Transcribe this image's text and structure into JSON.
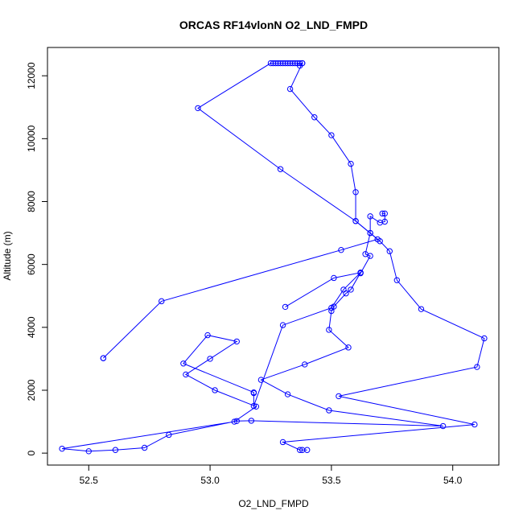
{
  "chart_data": {
    "type": "line",
    "title": "ORCAS RF14vlonN O2_LND_FMPD",
    "xlabel": "O2_LND_FMPD",
    "ylabel": "Altitude (m)",
    "xlim": [
      52.33,
      54.19
    ],
    "ylim": [
      -380,
      12900
    ],
    "x_ticks": [
      52.5,
      53.0,
      53.5,
      54.0
    ],
    "x_tick_labels": [
      "52.5",
      "53.0",
      "53.5",
      "54.0"
    ],
    "y_ticks": [
      0,
      2000,
      4000,
      6000,
      8000,
      10000,
      12000
    ],
    "y_tick_labels": [
      "0",
      "2000",
      "4000",
      "6000",
      "8000",
      "10000",
      "12000"
    ],
    "grid": false,
    "color": "#0000ff",
    "marker": "open-circle",
    "series": [
      {
        "points": [
          [
            53.37,
            12320
          ],
          [
            53.38,
            12400
          ],
          [
            53.37,
            12400
          ],
          [
            53.36,
            12400
          ],
          [
            53.35,
            12400
          ],
          [
            53.34,
            12400
          ],
          [
            53.33,
            12400
          ],
          [
            53.32,
            12400
          ],
          [
            53.31,
            12400
          ],
          [
            53.3,
            12400
          ],
          [
            53.29,
            12400
          ],
          [
            53.28,
            12400
          ],
          [
            53.27,
            12400
          ],
          [
            53.26,
            12400
          ],
          [
            53.25,
            12400
          ],
          [
            52.95,
            10970
          ],
          [
            53.29,
            9030
          ],
          [
            53.6,
            7380
          ],
          [
            53.69,
            6800
          ],
          [
            53.54,
            6460
          ],
          [
            52.8,
            4830
          ],
          [
            52.56,
            3020
          ],
          [
            52.56,
            3020
          ]
        ]
      },
      {
        "points": [
          [
            53.38,
            12400
          ],
          [
            53.33,
            11580
          ],
          [
            53.43,
            10680
          ],
          [
            53.5,
            10110
          ],
          [
            53.58,
            9200
          ],
          [
            53.6,
            8300
          ],
          [
            53.6,
            7380
          ],
          [
            53.66,
            7000
          ],
          [
            53.7,
            6740
          ],
          [
            53.74,
            6420
          ],
          [
            53.77,
            5500
          ],
          [
            53.87,
            4580
          ],
          [
            54.13,
            3650
          ],
          [
            54.1,
            2740
          ],
          [
            53.53,
            1810
          ],
          [
            54.09,
            910
          ],
          [
            53.3,
            350
          ],
          [
            53.37,
            100
          ],
          [
            53.38,
            100
          ],
          [
            53.4,
            100
          ]
        ]
      },
      {
        "points": [
          [
            53.71,
            7620
          ],
          [
            53.72,
            7620
          ],
          [
            53.72,
            7360
          ],
          [
            53.7,
            7330
          ],
          [
            53.66,
            7530
          ],
          [
            53.66,
            7000
          ],
          [
            53.64,
            6330
          ],
          [
            53.66,
            6270
          ],
          [
            53.62,
            5720
          ],
          [
            53.62,
            5740
          ],
          [
            53.58,
            5200
          ],
          [
            53.56,
            5080
          ],
          [
            53.51,
            4660
          ],
          [
            53.5,
            4520
          ],
          [
            53.49,
            3920
          ],
          [
            53.57,
            3360
          ],
          [
            53.39,
            2820
          ],
          [
            53.21,
            2330
          ],
          [
            53.32,
            1870
          ],
          [
            53.49,
            1360
          ],
          [
            53.96,
            860
          ],
          [
            53.17,
            1030
          ],
          [
            53.11,
            1020
          ],
          [
            52.83,
            580
          ],
          [
            52.73,
            170
          ],
          [
            52.61,
            100
          ],
          [
            52.5,
            60
          ],
          [
            52.39,
            140
          ],
          [
            53.1,
            1000
          ],
          [
            53.19,
            1480
          ],
          [
            53.02,
            2000
          ],
          [
            52.9,
            2500
          ],
          [
            53.0,
            3000
          ],
          [
            53.11,
            3550
          ],
          [
            52.99,
            3750
          ],
          [
            52.89,
            2850
          ],
          [
            53.18,
            1930
          ],
          [
            53.18,
            1910
          ],
          [
            53.18,
            1500
          ],
          [
            53.3,
            4070
          ],
          [
            53.5,
            4620
          ],
          [
            53.55,
            5200
          ],
          [
            53.62,
            5740
          ],
          [
            53.51,
            5570
          ],
          [
            53.31,
            4650
          ]
        ]
      }
    ]
  }
}
